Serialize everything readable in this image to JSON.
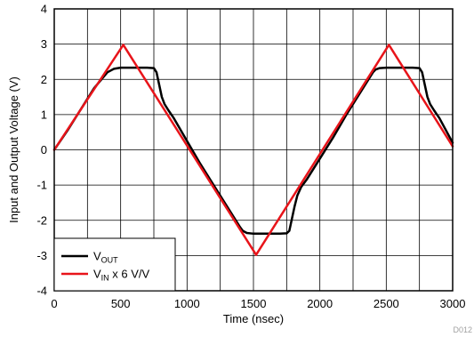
{
  "chart_data": {
    "type": "line",
    "title": "",
    "xlabel": "Time (nsec)",
    "ylabel": "Input and Output Voltage (V)",
    "xlim": [
      0,
      3000
    ],
    "ylim": [
      -4,
      4
    ],
    "xticks": [
      0,
      500,
      1000,
      1500,
      2000,
      2500,
      3000
    ],
    "yticks": [
      -4,
      -3,
      -2,
      -1,
      0,
      1,
      2,
      3,
      4
    ],
    "grid": true,
    "legend_position": "bottom-left",
    "code_label": "D012",
    "series": [
      {
        "name": "VOUT",
        "legend_main": "V",
        "legend_sub": "OUT",
        "legend_rest": "",
        "color": "#000000",
        "x": [
          0,
          100,
          200,
          300,
          400,
          450,
          500,
          550,
          600,
          650,
          700,
          750,
          770,
          790,
          810,
          830,
          860,
          900,
          1000,
          1100,
          1200,
          1300,
          1400,
          1420,
          1450,
          1500,
          1550,
          1600,
          1650,
          1700,
          1750,
          1770,
          1790,
          1810,
          1830,
          1860,
          1900,
          2000,
          2100,
          2200,
          2300,
          2400,
          2420,
          2450,
          2500,
          2550,
          2600,
          2650,
          2700,
          2750,
          2770,
          2790,
          2810,
          2830,
          2860,
          2900,
          3000
        ],
        "values": [
          0.0,
          0.55,
          1.15,
          1.75,
          2.2,
          2.3,
          2.33,
          2.33,
          2.33,
          2.33,
          2.33,
          2.32,
          2.2,
          1.85,
          1.5,
          1.3,
          1.12,
          0.9,
          0.25,
          -0.4,
          -1.0,
          -1.6,
          -2.2,
          -2.3,
          -2.36,
          -2.38,
          -2.38,
          -2.38,
          -2.38,
          -2.38,
          -2.37,
          -2.3,
          -1.95,
          -1.6,
          -1.3,
          -1.05,
          -0.85,
          -0.25,
          0.35,
          1.0,
          1.6,
          2.2,
          2.28,
          2.32,
          2.33,
          2.33,
          2.33,
          2.33,
          2.33,
          2.32,
          2.2,
          1.85,
          1.5,
          1.3,
          1.12,
          0.9,
          0.2
        ]
      },
      {
        "name": "VIN x 6 V/V",
        "legend_main": "V",
        "legend_sub": "IN",
        "legend_rest": " x 6 V/V",
        "color": "#e8141a",
        "x": [
          0,
          520,
          1520,
          2520,
          3000
        ],
        "values": [
          0.0,
          2.98,
          -2.98,
          2.98,
          0.1
        ]
      }
    ]
  }
}
